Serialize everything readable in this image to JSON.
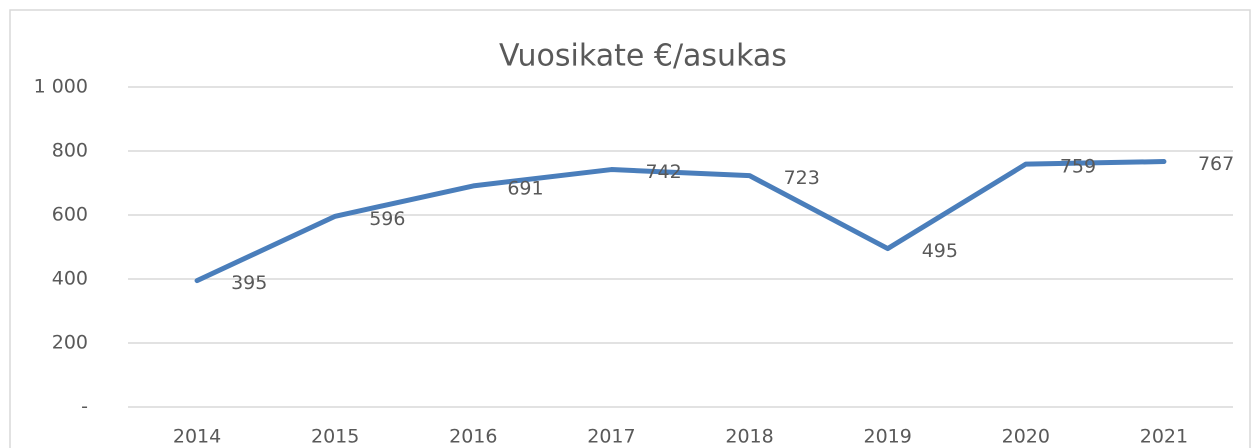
{
  "chart_data": {
    "type": "line",
    "title": "Vuosikate €/asukas",
    "categories": [
      "2014",
      "2015",
      "2016",
      "2017",
      "2018",
      "2019",
      "2020",
      "2021"
    ],
    "series": [
      {
        "name": "Vuosikate €/asukas",
        "color": "#4a7ebb",
        "values": [
          395,
          596,
          691,
          742,
          723,
          495,
          759,
          767
        ]
      }
    ],
    "ylim": [
      0,
      1000
    ],
    "yticks": [
      {
        "value": 0,
        "label": "-"
      },
      200,
      400,
      600,
      800,
      {
        "value": 1000,
        "label": "1 000"
      }
    ],
    "grid": true,
    "data_labels": true
  }
}
